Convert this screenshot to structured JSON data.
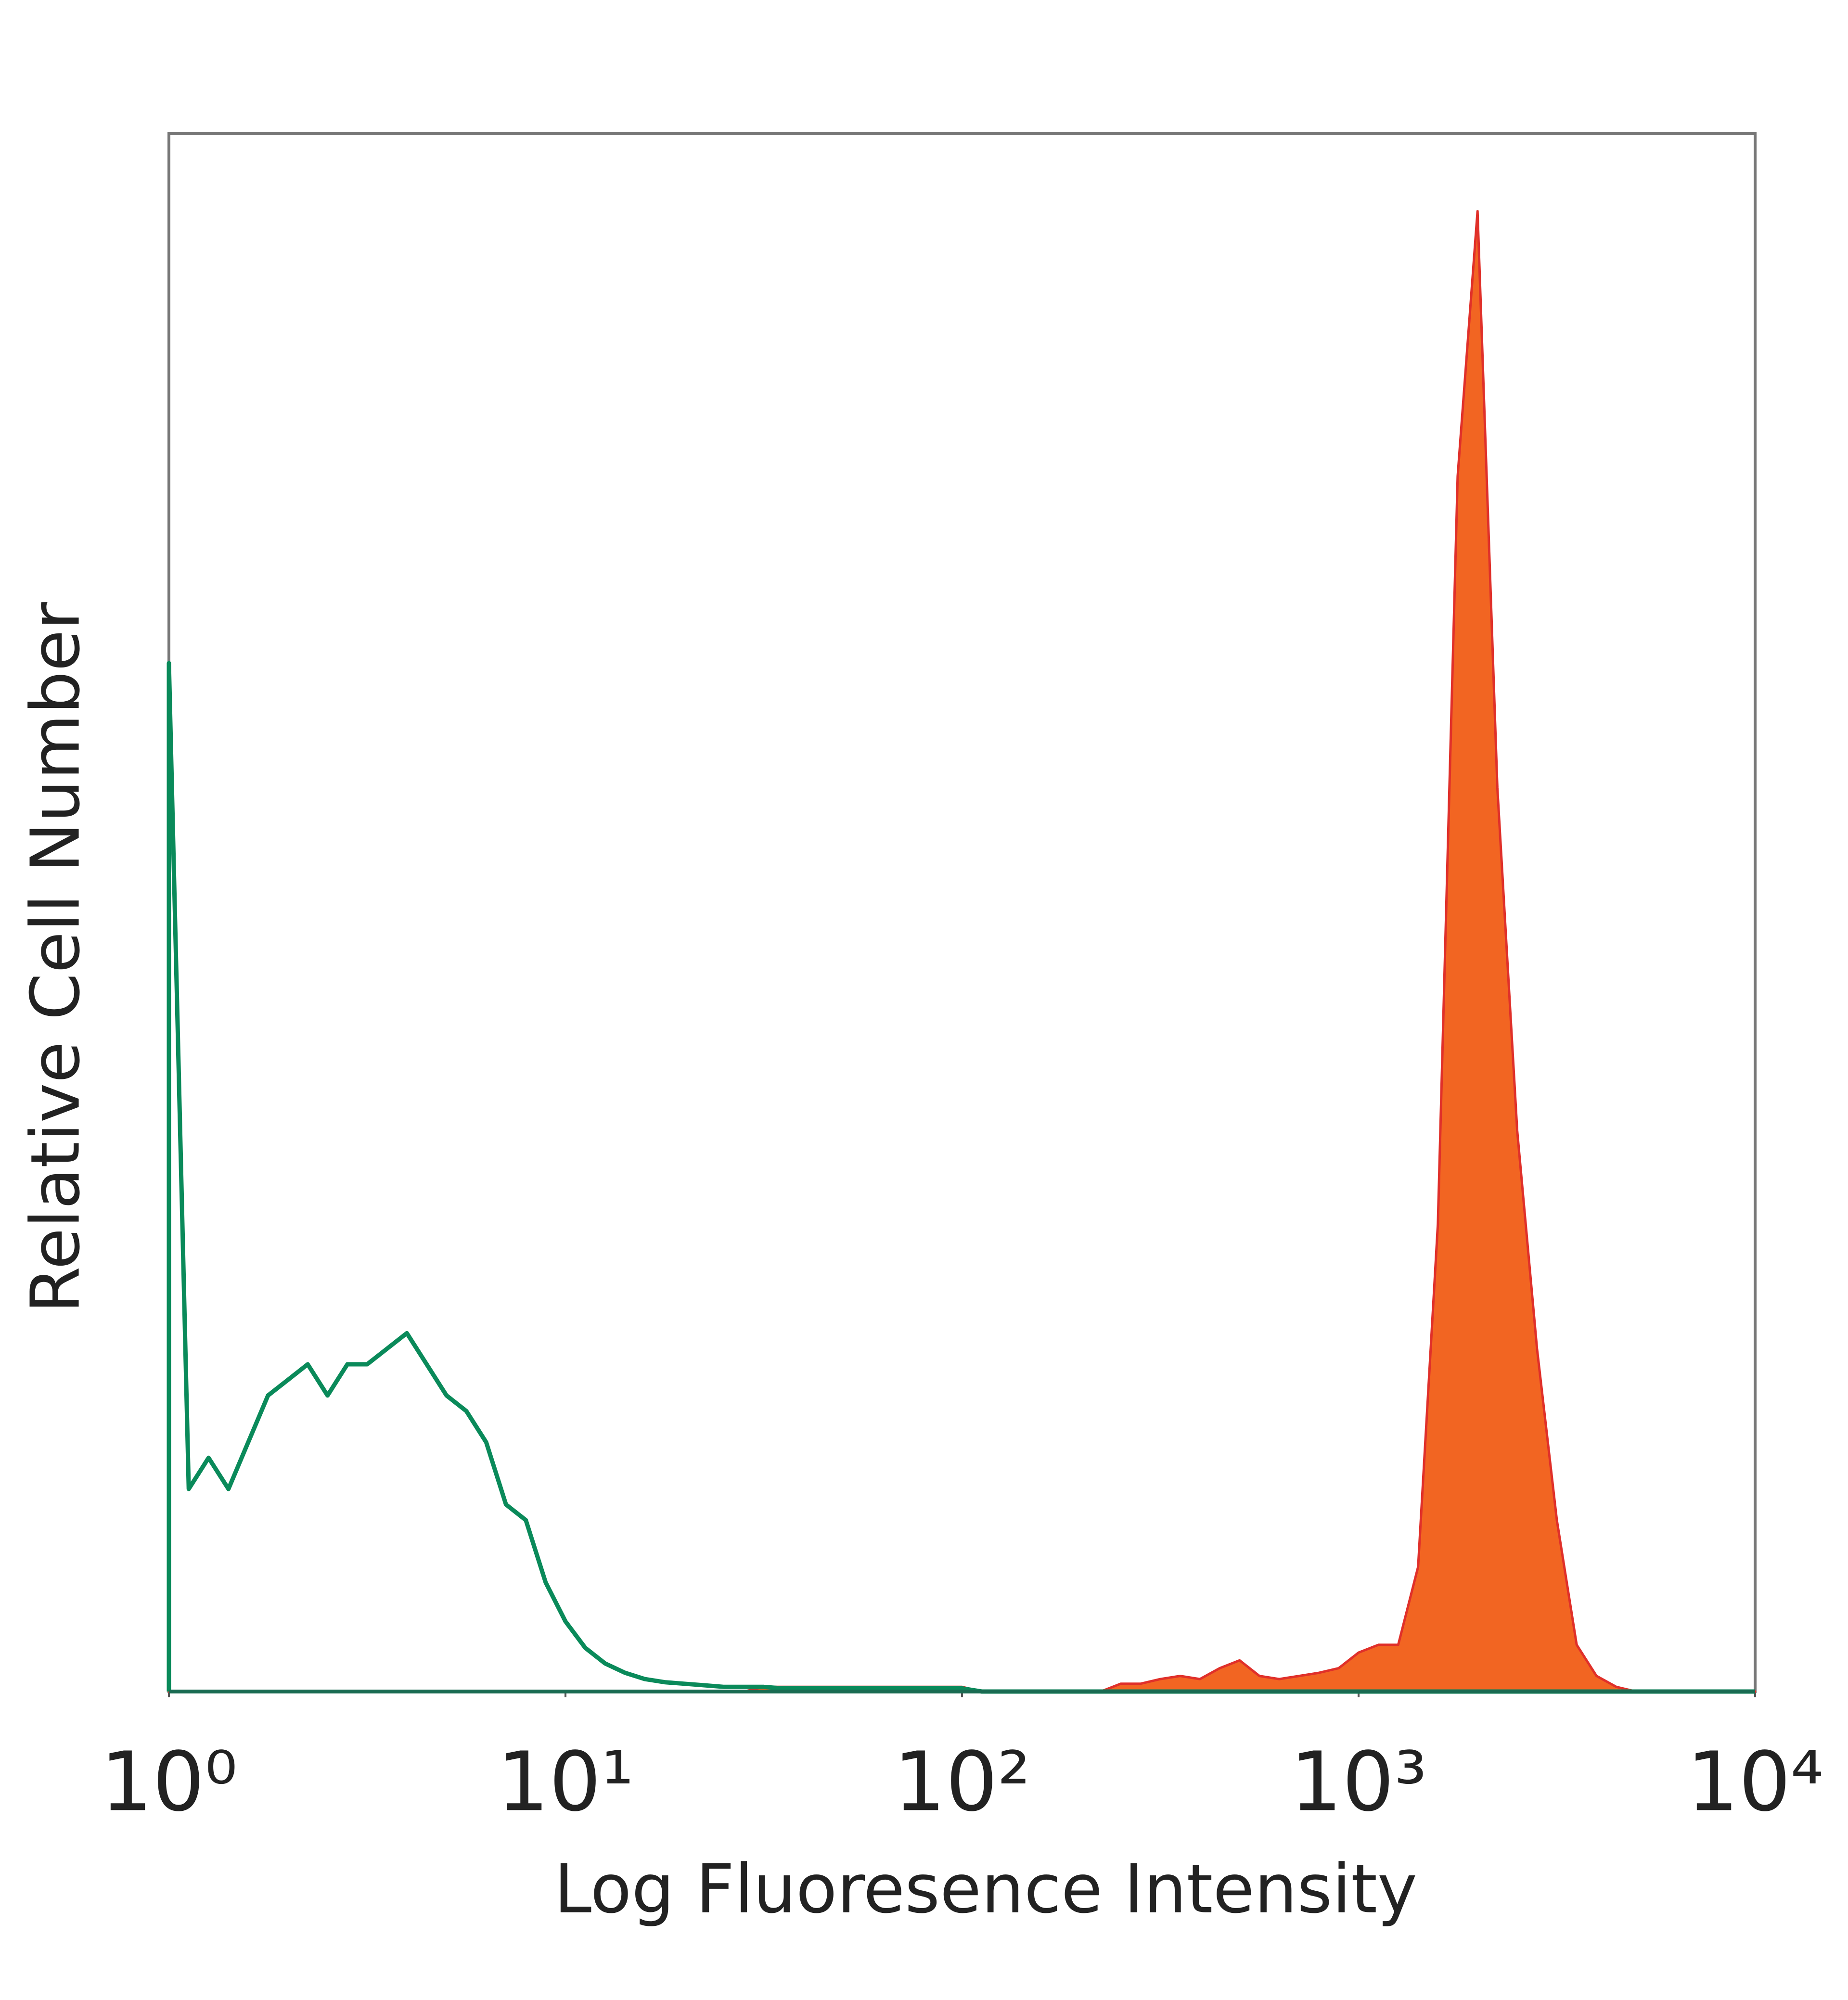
{
  "chart_data": {
    "type": "histogram",
    "xlabel": "Log Fluoresence Intensity",
    "ylabel": "Relative Cell Number",
    "xscale": "log",
    "xlim": [
      1,
      10000
    ],
    "xticks": [
      {
        "value": 1,
        "label": "10⁰"
      },
      {
        "value": 10,
        "label": "10¹"
      },
      {
        "value": 100,
        "label": "10²"
      },
      {
        "value": 1000,
        "label": "10³"
      },
      {
        "value": 10000,
        "label": "10⁴"
      }
    ],
    "ylim": [
      0,
      100
    ],
    "grid": false,
    "x": [
      1,
      1.122,
      1.259,
      1.413,
      1.585,
      1.778,
      1.995,
      2.239,
      2.512,
      2.818,
      3.162,
      3.548,
      3.981,
      4.467,
      5.012,
      5.623,
      6.31,
      7.079,
      7.943,
      8.913,
      10,
      11.22,
      12.59,
      14.13,
      15.85,
      17.78,
      19.95,
      22.39,
      25.12,
      28.18,
      31.62,
      35.48,
      39.81,
      44.67,
      50.12,
      56.23,
      63.1,
      70.79,
      79.43,
      89.13,
      100,
      112.2,
      125.9,
      141.3,
      158.5,
      177.8,
      199.5,
      223.9,
      251.2,
      281.8,
      316.2,
      354.8,
      398.1,
      446.7,
      501.2,
      562.3,
      631,
      707.9,
      794.3,
      891.3,
      1000,
      1122,
      1259,
      1413,
      1585,
      1778,
      1995,
      2239,
      2512,
      2818,
      3162,
      3548,
      3981,
      4467,
      5012,
      5623,
      6310,
      7079,
      7943,
      8913,
      10000
    ],
    "series": [
      {
        "color": "#f26522",
        "fill": true,
        "values": [
          0,
          0,
          0,
          0,
          0,
          0,
          0,
          0,
          0,
          0,
          0,
          0,
          0,
          0,
          0,
          0,
          0,
          0,
          0,
          0,
          0,
          0,
          0,
          0,
          0,
          0,
          0,
          0,
          0,
          0,
          0.3,
          0.3,
          0.3,
          0.3,
          0.3,
          0.3,
          0.3,
          0.3,
          0.3,
          0.3,
          0.3,
          0,
          0,
          0,
          0,
          0,
          0,
          0,
          0.5,
          0.5,
          0.8,
          1,
          0.8,
          1.5,
          2,
          1,
          0.8,
          1,
          1.2,
          1.5,
          2.5,
          3,
          3,
          8,
          30,
          78,
          95,
          58,
          36,
          22,
          11,
          3,
          1,
          0.3,
          0,
          0,
          0,
          0,
          0,
          0,
          0
        ]
      },
      {
        "color": "#0a8a5a",
        "fill": false,
        "values": [
          66,
          13,
          15,
          13,
          16,
          19,
          20,
          21,
          19,
          21,
          21,
          22,
          23,
          21,
          19,
          18,
          16,
          12,
          11,
          7,
          4.5,
          2.8,
          1.8,
          1.2,
          0.8,
          0.6,
          0.5,
          0.4,
          0.3,
          0.3,
          0.3,
          0.2,
          0.2,
          0.2,
          0.2,
          0.2,
          0.2,
          0.2,
          0.2,
          0.2,
          0.2,
          0,
          0,
          0,
          0,
          0,
          0,
          0,
          0,
          0,
          0,
          0,
          0,
          0,
          0,
          0,
          0,
          0,
          0,
          0,
          0,
          0,
          0,
          0,
          0,
          0,
          0,
          0,
          0,
          0,
          0,
          0,
          0,
          0,
          0,
          0,
          0,
          0,
          0,
          0,
          0
        ]
      }
    ]
  }
}
